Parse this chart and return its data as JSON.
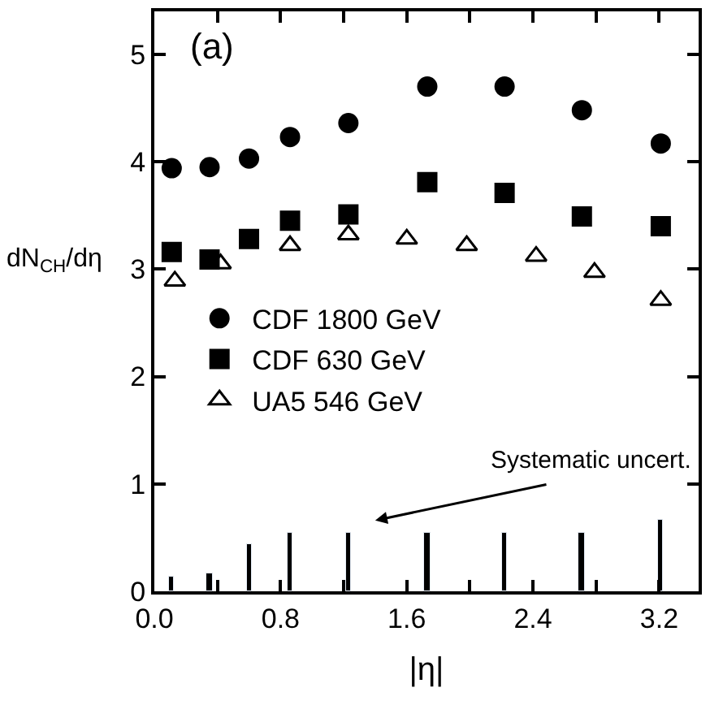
{
  "chart_data": {
    "type": "scatter",
    "xlabel": "|η|",
    "ylabel": "dN$_{CH}$/dη",
    "xlim": [
      0,
      3.45
    ],
    "ylim": [
      0,
      5.4
    ],
    "xticks": [
      {
        "value": 0,
        "label": "0.0"
      },
      {
        "value": 0.4,
        "label": null
      },
      {
        "value": 0.8,
        "label": "0.8"
      },
      {
        "value": 1.2,
        "label": null
      },
      {
        "value": 1.6,
        "label": "1.6"
      },
      {
        "value": 2.0,
        "label": null
      },
      {
        "value": 2.4,
        "label": "2.4"
      },
      {
        "value": 2.8,
        "label": null
      },
      {
        "value": 3.2,
        "label": "3.2"
      }
    ],
    "yticks": [
      0,
      1,
      2,
      3,
      4,
      5
    ],
    "legend": "left",
    "annotations": [
      "(a)",
      "Systematic uncert."
    ],
    "series": [
      {
        "name": "CDF 1800 GeV",
        "color": "#000000",
        "marker": "circle",
        "x": [
          0.11,
          0.35,
          0.6,
          0.86,
          1.23,
          1.73,
          2.22,
          2.71,
          3.21
        ],
        "values": [
          3.94,
          3.95,
          4.03,
          4.23,
          4.36,
          4.7,
          4.7,
          4.48,
          4.17
        ]
      },
      {
        "name": "CDF 630 GeV",
        "color": "#000000",
        "marker": "square",
        "x": [
          0.11,
          0.35,
          0.6,
          0.86,
          1.23,
          1.73,
          2.22,
          2.71,
          3.21
        ],
        "values": [
          3.16,
          3.09,
          3.28,
          3.45,
          3.51,
          3.81,
          3.71,
          3.49,
          3.4
        ]
      },
      {
        "name": "UA5 546 GeV",
        "color": "#000000",
        "marker": "triangle",
        "x": [
          0.13,
          0.42,
          0.86,
          1.23,
          1.6,
          1.98,
          2.42,
          2.79,
          3.21
        ],
        "values": [
          2.89,
          3.05,
          3.22,
          3.32,
          3.28,
          3.22,
          3.12,
          2.97,
          2.71
        ]
      },
      {
        "type": "bar",
        "color": "#000000",
        "x": [
          0.11,
          0.35,
          0.6,
          0.86,
          1.23,
          1.73,
          2.22,
          2.71,
          3.21
        ],
        "values": [
          0.14,
          0.17,
          0.44,
          0.54,
          0.54,
          0.54,
          0.54,
          0.54,
          0.67
        ]
      }
    ]
  }
}
